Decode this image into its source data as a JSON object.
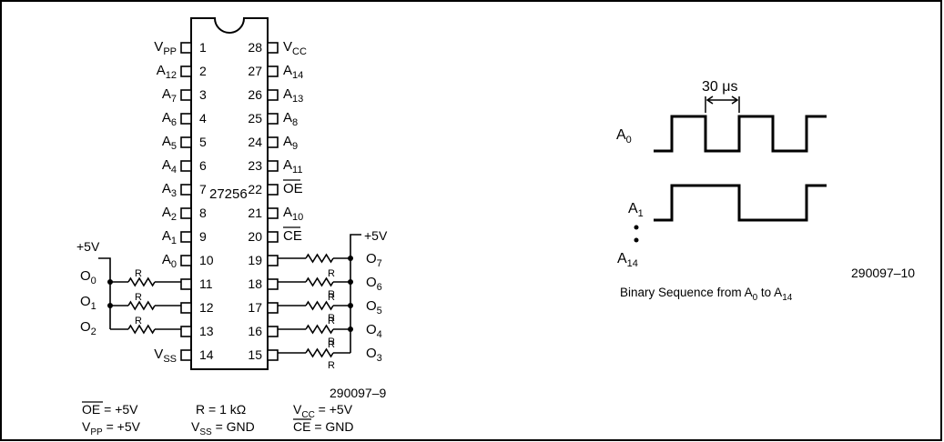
{
  "chip": {
    "name": "27256",
    "left_pins": [
      {
        "num": "1",
        "label": "V",
        "sub": "PP",
        "bar": false
      },
      {
        "num": "2",
        "label": "A",
        "sub": "12",
        "bar": false
      },
      {
        "num": "3",
        "label": "A",
        "sub": "7",
        "bar": false
      },
      {
        "num": "4",
        "label": "A",
        "sub": "6",
        "bar": false
      },
      {
        "num": "5",
        "label": "A",
        "sub": "5",
        "bar": false
      },
      {
        "num": "6",
        "label": "A",
        "sub": "4",
        "bar": false
      },
      {
        "num": "7",
        "label": "A",
        "sub": "3",
        "bar": false
      },
      {
        "num": "8",
        "label": "A",
        "sub": "2",
        "bar": false
      },
      {
        "num": "9",
        "label": "A",
        "sub": "1",
        "bar": false
      },
      {
        "num": "10",
        "label": "A",
        "sub": "0",
        "bar": false
      },
      {
        "num": "11",
        "label": "",
        "sub": "",
        "bar": false
      },
      {
        "num": "12",
        "label": "",
        "sub": "",
        "bar": false
      },
      {
        "num": "13",
        "label": "",
        "sub": "",
        "bar": false
      },
      {
        "num": "14",
        "label": "V",
        "sub": "SS",
        "bar": false
      }
    ],
    "right_pins": [
      {
        "num": "28",
        "label": "V",
        "sub": "CC",
        "bar": false
      },
      {
        "num": "27",
        "label": "A",
        "sub": "14",
        "bar": false
      },
      {
        "num": "26",
        "label": "A",
        "sub": "13",
        "bar": false
      },
      {
        "num": "25",
        "label": "A",
        "sub": "8",
        "bar": false
      },
      {
        "num": "24",
        "label": "A",
        "sub": "9",
        "bar": false
      },
      {
        "num": "23",
        "label": "A",
        "sub": "11",
        "bar": false
      },
      {
        "num": "22",
        "label": "OE",
        "sub": "",
        "bar": true
      },
      {
        "num": "21",
        "label": "A",
        "sub": "10",
        "bar": false
      },
      {
        "num": "20",
        "label": "CE",
        "sub": "",
        "bar": true
      },
      {
        "num": "19",
        "label": "",
        "sub": "",
        "bar": false
      },
      {
        "num": "18",
        "label": "",
        "sub": "",
        "bar": false
      },
      {
        "num": "17",
        "label": "",
        "sub": "",
        "bar": false
      },
      {
        "num": "16",
        "label": "",
        "sub": "",
        "bar": false
      },
      {
        "num": "15",
        "label": "",
        "sub": "",
        "bar": false
      }
    ]
  },
  "left_outputs": [
    {
      "label": "O",
      "sub": "0"
    },
    {
      "label": "O",
      "sub": "1"
    },
    {
      "label": "O",
      "sub": "2"
    }
  ],
  "right_outputs": [
    {
      "label": "O",
      "sub": "7"
    },
    {
      "label": "O",
      "sub": "6"
    },
    {
      "label": "O",
      "sub": "5"
    },
    {
      "label": "O",
      "sub": "4"
    },
    {
      "label": "O",
      "sub": "3"
    }
  ],
  "supply_label": "+5V",
  "resistor_label": "R",
  "fig_id_left": "290097–9",
  "conditions": {
    "oe_name": "OE",
    "oe_val": " = +5V",
    "r_text": "R = 1 kΩ",
    "vcc_v": "V",
    "vcc_sub": "CC",
    "vcc_val": " = +5V",
    "vpp_v": "V",
    "vpp_sub": "PP",
    "vpp_val": " = +5V",
    "vss_v": "V",
    "vss_sub": "SS",
    "vss_val": " = GND",
    "ce_name": "CE",
    "ce_val": " = GND"
  },
  "timing": {
    "period_label": "30 μs",
    "a0_label": "A",
    "a0_sub": "0",
    "a1_label": "A",
    "a1_sub": "1",
    "a14_label": "A",
    "a14_sub": "14",
    "caption_pre": "Binary Sequence from A",
    "caption_sub1": "0",
    "caption_mid": " to A",
    "caption_sub2": "14",
    "fig_id": "290097–10"
  }
}
